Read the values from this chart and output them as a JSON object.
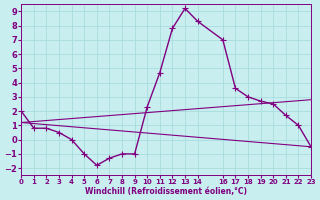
{
  "xlabel": "Windchill (Refroidissement éolien,°C)",
  "ylabel": "",
  "background_color": "#c8eef0",
  "line_color": "#800080",
  "grid_color": "#aadddd",
  "xlim": [
    0,
    23
  ],
  "ylim": [
    -2.5,
    9.5
  ],
  "xticks": [
    0,
    1,
    2,
    3,
    4,
    5,
    6,
    7,
    8,
    9,
    10,
    11,
    12,
    13,
    14,
    16,
    17,
    18,
    19,
    20,
    21,
    22,
    23
  ],
  "yticks": [
    -2,
    -1,
    0,
    1,
    2,
    3,
    4,
    5,
    6,
    7,
    8,
    9
  ],
  "line1_x": [
    0,
    1,
    2,
    3,
    4,
    5,
    6,
    7,
    8,
    9,
    10,
    11,
    12,
    13,
    14,
    16,
    17,
    18,
    19,
    20,
    21,
    22,
    23
  ],
  "line1_y": [
    2.0,
    0.8,
    0.8,
    0.5,
    0.0,
    -1.0,
    -1.8,
    -1.3,
    -1.0,
    -1.0,
    2.3,
    4.7,
    7.8,
    9.2,
    8.3,
    7.0,
    3.6,
    3.0,
    2.7,
    2.5,
    1.7,
    1.0,
    -0.5
  ],
  "line2_x": [
    0,
    23
  ],
  "line2_y": [
    1.2,
    2.8
  ],
  "line3_x": [
    0,
    23
  ],
  "line3_y": [
    1.2,
    -0.5
  ]
}
